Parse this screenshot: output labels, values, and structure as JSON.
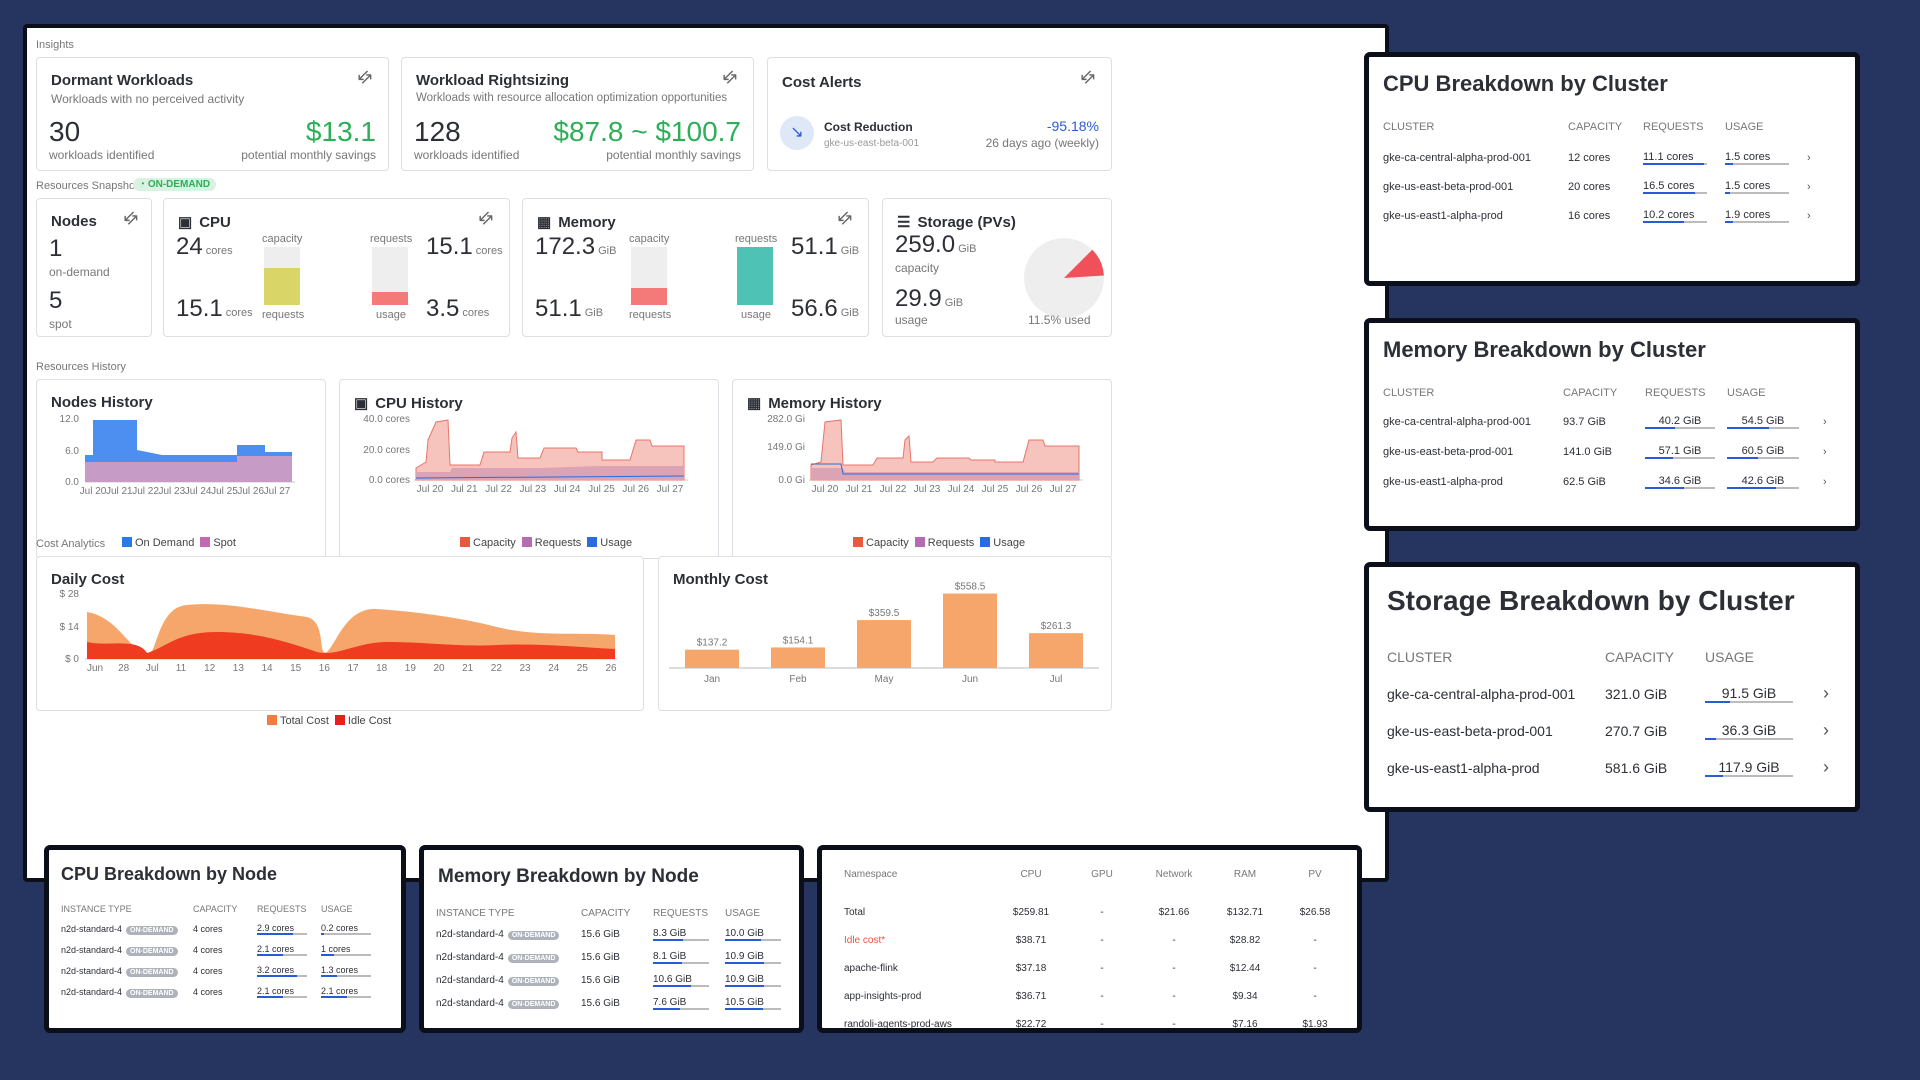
{
  "sections": {
    "insights": "Insights",
    "snapshot": "Resources Snapshot",
    "snapshot_badge": "ON-DEMAND",
    "history": "Resources History",
    "cost": "Cost Analytics"
  },
  "dormant": {
    "title": "Dormant Workloads",
    "subtitle": "Workloads with no perceived activity",
    "count": "30",
    "count_label": "workloads identified",
    "savings": "$13.1",
    "savings_label": "potential monthly savings"
  },
  "rightsizing": {
    "title": "Workload Rightsizing",
    "subtitle": "Workloads with resource allocation optimization opportunities",
    "count": "128",
    "count_label": "workloads identified",
    "savings": "$87.8 ~ $100.7",
    "savings_label": "potential monthly savings"
  },
  "alerts": {
    "title": "Cost Alerts",
    "item_title": "Cost Reduction",
    "item_cluster": "gke-us-east-beta-001",
    "item_pct": "-95.18%",
    "item_time": "26 days ago (weekly)"
  },
  "nodes": {
    "title": "Nodes",
    "ondemand": "1",
    "ondemand_label": "on-demand",
    "spot": "5",
    "spot_label": "spot"
  },
  "cpu": {
    "title": "CPU",
    "capacity": "24",
    "capacity_unit": "cores",
    "requests_val": "15.1",
    "requests_unit": "cores",
    "top_right": "15.1",
    "top_right_unit": "cores",
    "usage_val": "3.5",
    "usage_unit": "cores",
    "lbl_capacity": "capacity",
    "lbl_requests": "requests",
    "lbl_requests2": "requests",
    "lbl_usage": "usage",
    "req_fraction": 0.63,
    "usage_fraction": 0.23
  },
  "memory": {
    "title": "Memory",
    "capacity": "172.3",
    "capacity_unit": "GiB",
    "requests_val": "51.1",
    "requests_unit": "GiB",
    "top_right": "51.1",
    "top_right_unit": "GiB",
    "usage_val": "56.6",
    "usage_unit": "GiB",
    "lbl_capacity": "capacity",
    "lbl_requests": "requests",
    "lbl_requests2": "requests",
    "lbl_usage": "usage",
    "req_fraction": 0.3,
    "usage_fraction": 1.0
  },
  "storage": {
    "title": "Storage (PVs)",
    "capacity": "259.0",
    "capacity_unit": "GiB",
    "capacity_label": "capacity",
    "usage": "29.9",
    "usage_unit": "GiB",
    "usage_label": "usage",
    "used_label": "11.5% used",
    "used_fraction": 0.115
  },
  "nodes_history": {
    "title": "Nodes History",
    "yticks": [
      "12.0",
      "6.0",
      "0.0"
    ],
    "xticks": [
      "Jul 20",
      "Jul 21",
      "Jul 22",
      "Jul 23",
      "Jul 24",
      "Jul 25",
      "Jul 26",
      "Jul 27"
    ],
    "legend": [
      "On Demand",
      "Spot"
    ]
  },
  "cpu_history": {
    "title": "CPU History",
    "yticks": [
      "40.0 cores",
      "20.0 cores",
      "0.0 cores"
    ],
    "xticks": [
      "Jul 20",
      "Jul 21",
      "Jul 22",
      "Jul 23",
      "Jul 24",
      "Jul 25",
      "Jul 26",
      "Jul 27"
    ],
    "legend": [
      "Capacity",
      "Requests",
      "Usage"
    ]
  },
  "mem_history": {
    "title": "Memory History",
    "yticks": [
      "282.0 Gi",
      "149.0 Gi",
      "0.0 Gi"
    ],
    "xticks": [
      "Jul 20",
      "Jul 21",
      "Jul 22",
      "Jul 23",
      "Jul 24",
      "Jul 25",
      "Jul 26",
      "Jul 27"
    ],
    "legend": [
      "Capacity",
      "Requests",
      "Usage"
    ]
  },
  "daily_cost": {
    "title": "Daily Cost",
    "yticks": [
      "$ 28",
      "$ 14",
      "$ 0"
    ],
    "xticks": [
      "Jun",
      "28",
      "Jul",
      "11",
      "12",
      "13",
      "14",
      "15",
      "16",
      "17",
      "18",
      "19",
      "20",
      "21",
      "22",
      "23",
      "24",
      "25",
      "26"
    ],
    "legend": [
      "Total Cost",
      "Idle Cost"
    ]
  },
  "chart_data": [
    {
      "type": "bar",
      "title": "Monthly Cost",
      "categories": [
        "Jan",
        "Feb",
        "May",
        "Jun",
        "Jul"
      ],
      "values": [
        137.2,
        154.1,
        359.5,
        558.5,
        261.3
      ],
      "labels": [
        "$137.2",
        "$154.1",
        "$359.5",
        "$558.5",
        "$261.3"
      ],
      "ylim": [
        0,
        600
      ]
    }
  ],
  "cpu_cluster": {
    "title": "CPU Breakdown by Cluster",
    "headers": [
      "CLUSTER",
      "CAPACITY",
      "REQUESTS",
      "USAGE"
    ],
    "rows": [
      {
        "name": "gke-ca-central-alpha-prod-001",
        "capacity": "12 cores",
        "requests": "11.1 cores",
        "usage": "1.5 cores"
      },
      {
        "name": "gke-us-east-beta-prod-001",
        "capacity": "20 cores",
        "requests": "16.5 cores",
        "usage": "1.5 cores"
      },
      {
        "name": "gke-us-east1-alpha-prod",
        "capacity": "16 cores",
        "requests": "10.2 cores",
        "usage": "1.9 cores"
      }
    ]
  },
  "mem_cluster": {
    "title": "Memory Breakdown by Cluster",
    "headers": [
      "CLUSTER",
      "CAPACITY",
      "REQUESTS",
      "USAGE"
    ],
    "rows": [
      {
        "name": "gke-ca-central-alpha-prod-001",
        "capacity": "93.7 GiB",
        "requests": "40.2 GiB",
        "usage": "54.5 GiB"
      },
      {
        "name": "gke-us-east-beta-prod-001",
        "capacity": "141.0 GiB",
        "requests": "57.1 GiB",
        "usage": "60.5 GiB"
      },
      {
        "name": "gke-us-east1-alpha-prod",
        "capacity": "62.5 GiB",
        "requests": "34.6 GiB",
        "usage": "42.6 GiB"
      }
    ]
  },
  "storage_cluster": {
    "title": "Storage Breakdown by Cluster",
    "headers": [
      "CLUSTER",
      "CAPACITY",
      "USAGE"
    ],
    "rows": [
      {
        "name": "gke-ca-central-alpha-prod-001",
        "capacity": "321.0 GiB",
        "usage": "91.5 GiB"
      },
      {
        "name": "gke-us-east-beta-prod-001",
        "capacity": "270.7 GiB",
        "usage": "36.3 GiB"
      },
      {
        "name": "gke-us-east1-alpha-prod",
        "capacity": "581.6 GiB",
        "usage": "117.9 GiB"
      }
    ]
  },
  "cpu_node": {
    "title": "CPU Breakdown by Node",
    "headers": [
      "INSTANCE TYPE",
      "CAPACITY",
      "REQUESTS",
      "USAGE"
    ],
    "badge": "ON-DEMAND",
    "rows": [
      {
        "type": "n2d-standard-4",
        "capacity": "4 cores",
        "requests": "2.9 cores",
        "usage": "0.2 cores"
      },
      {
        "type": "n2d-standard-4",
        "capacity": "4 cores",
        "requests": "2.1 cores",
        "usage": "1 cores"
      },
      {
        "type": "n2d-standard-4",
        "capacity": "4 cores",
        "requests": "3.2 cores",
        "usage": "1.3 cores"
      },
      {
        "type": "n2d-standard-4",
        "capacity": "4 cores",
        "requests": "2.1 cores",
        "usage": "2.1 cores"
      }
    ]
  },
  "mem_node": {
    "title": "Memory Breakdown by Node",
    "headers": [
      "INSTANCE TYPE",
      "CAPACITY",
      "REQUESTS",
      "USAGE"
    ],
    "badge": "ON-DEMAND",
    "rows": [
      {
        "type": "n2d-standard-4",
        "capacity": "15.6 GiB",
        "requests": "8.3 GiB",
        "usage": "10.0 GiB"
      },
      {
        "type": "n2d-standard-4",
        "capacity": "15.6 GiB",
        "requests": "8.1 GiB",
        "usage": "10.9 GiB"
      },
      {
        "type": "n2d-standard-4",
        "capacity": "15.6 GiB",
        "requests": "10.6 GiB",
        "usage": "10.9 GiB"
      },
      {
        "type": "n2d-standard-4",
        "capacity": "15.6 GiB",
        "requests": "7.6 GiB",
        "usage": "10.5 GiB"
      }
    ]
  },
  "ns_table": {
    "headers": [
      "Namespace",
      "CPU",
      "GPU",
      "Network",
      "RAM",
      "PV"
    ],
    "rows": [
      {
        "ns": "Total",
        "cpu": "$259.81",
        "gpu": "-",
        "net": "$21.66",
        "ram": "$132.71",
        "pv": "$26.58"
      },
      {
        "ns": "Idle cost*",
        "cpu": "$38.71",
        "gpu": "-",
        "net": "-",
        "ram": "$28.82",
        "pv": "-"
      },
      {
        "ns": "apache-flink",
        "cpu": "$37.18",
        "gpu": "-",
        "net": "-",
        "ram": "$12.44",
        "pv": "-"
      },
      {
        "ns": "app-insights-prod",
        "cpu": "$36.71",
        "gpu": "-",
        "net": "-",
        "ram": "$9.34",
        "pv": "-"
      },
      {
        "ns": "randoli-agents-prod-aws",
        "cpu": "$22.72",
        "gpu": "-",
        "net": "-",
        "ram": "$7.16",
        "pv": "$1.93"
      }
    ]
  }
}
